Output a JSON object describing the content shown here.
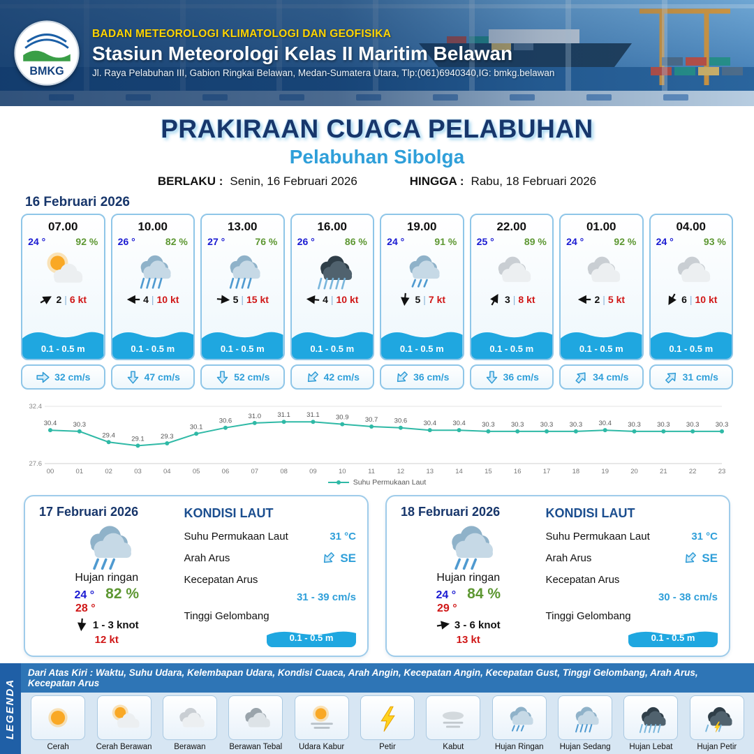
{
  "header": {
    "logo": "BMKG",
    "agency": "BADAN METEOROLOGI KLIMATOLOGI DAN GEOFISIKA",
    "station": "Stasiun Meteorologi Kelas II Maritim Belawan",
    "address": "Jl. Raya Pelabuhan III, Gabion Ringkai Belawan, Medan-Sumatera Utara, Tlp:(061)6940340,IG: bmkg.belawan"
  },
  "title": {
    "main": "PRAKIRAAN CUACA PELABUHAN",
    "subtitle": "Pelabuhan Sibolga",
    "valid_from_label": "BERLAKU :",
    "valid_from": "Senin, 16 Februari 2026",
    "valid_to_label": "HINGGA :",
    "valid_to": "Rabu, 18 Februari 2026"
  },
  "forecast": {
    "date": "16 Februari 2026",
    "cards": [
      {
        "time": "07.00",
        "temp": "24 °",
        "humidity": "92 %",
        "icon": "cerah-berawan",
        "wind_rot": -30,
        "wind_speed": "2",
        "gust": "6 kt",
        "wave": "0.1 - 0.5 m",
        "current_rot": 0,
        "current": "32 cm/s"
      },
      {
        "time": "10.00",
        "temp": "26 °",
        "humidity": "82 %",
        "icon": "hujan-sedang",
        "wind_rot": 180,
        "wind_speed": "4",
        "gust": "10 kt",
        "wave": "0.1 - 0.5 m",
        "current_rot": 90,
        "current": "47 cm/s"
      },
      {
        "time": "13.00",
        "temp": "27 °",
        "humidity": "76 %",
        "icon": "hujan-sedang",
        "wind_rot": 5,
        "wind_speed": "5",
        "gust": "15 kt",
        "wave": "0.1 - 0.5 m",
        "current_rot": 90,
        "current": "52 cm/s"
      },
      {
        "time": "16.00",
        "temp": "26 °",
        "humidity": "86 %",
        "icon": "hujan-lebat",
        "wind_rot": 185,
        "wind_speed": "4",
        "gust": "10 kt",
        "wave": "0.1 - 0.5 m",
        "current_rot": 135,
        "current": "42 cm/s"
      },
      {
        "time": "19.00",
        "temp": "24 °",
        "humidity": "91 %",
        "icon": "hujan-ringan",
        "wind_rot": 95,
        "wind_speed": "5",
        "gust": "7 kt",
        "wave": "0.1 - 0.5 m",
        "current_rot": 135,
        "current": "36 cm/s"
      },
      {
        "time": "22.00",
        "temp": "25 °",
        "humidity": "89 %",
        "icon": "berawan",
        "wind_rot": -60,
        "wind_speed": "3",
        "gust": "8 kt",
        "wave": "0.1 - 0.5 m",
        "current_rot": 90,
        "current": "36 cm/s"
      },
      {
        "time": "01.00",
        "temp": "24 °",
        "humidity": "92 %",
        "icon": "berawan",
        "wind_rot": 180,
        "wind_speed": "2",
        "gust": "5 kt",
        "wave": "0.1 - 0.5 m",
        "current_rot": -50,
        "current": "34 cm/s"
      },
      {
        "time": "04.00",
        "temp": "24 °",
        "humidity": "93 %",
        "icon": "berawan",
        "wind_rot": 120,
        "wind_speed": "6",
        "gust": "10 kt",
        "wave": "0.1 - 0.5 m",
        "current_rot": -45,
        "current": "31 cm/s"
      }
    ]
  },
  "chart_data": {
    "type": "line",
    "x": [
      "00",
      "01",
      "02",
      "03",
      "04",
      "05",
      "06",
      "07",
      "08",
      "09",
      "10",
      "11",
      "12",
      "13",
      "14",
      "15",
      "16",
      "17",
      "18",
      "19",
      "20",
      "21",
      "22",
      "23"
    ],
    "values": [
      30.4,
      30.3,
      29.4,
      29.1,
      29.3,
      30.1,
      30.6,
      31.0,
      31.1,
      31.1,
      30.9,
      30.7,
      30.6,
      30.4,
      30.4,
      30.3,
      30.3,
      30.3,
      30.3,
      30.4,
      30.3,
      30.3,
      30.3,
      30.3
    ],
    "ylim": [
      27.6,
      32.4
    ],
    "y_ticks": [
      "32.4",
      "27.6"
    ],
    "legend": "Suhu Permukaan Laut",
    "line_color": "#2fb9a6",
    "grid": false,
    "legend_position": "bottom"
  },
  "daily": [
    {
      "date": "17 Februari 2026",
      "icon": "hujan-ringan",
      "condition": "Hujan ringan",
      "temp_min": "24 °",
      "humidity": "82 %",
      "temp_max": "28 °",
      "wind_rot": 95,
      "wind": "1  - 3 knot",
      "gust": "12 kt",
      "sea_title": "KONDISI LAUT",
      "sst_label": "Suhu Permukaan Laut",
      "sst": "31 °C",
      "current_dir_label": "Arah Arus",
      "current_rot": 135,
      "current_dir": "SE",
      "current_speed_label": "Kecepatan Arus",
      "current_speed": "31  - 39 cm/s",
      "wave_label": "Tinggi Gelombang",
      "wave": "0.1 - 0.5 m"
    },
    {
      "date": "18 Februari 2026",
      "icon": "hujan-ringan",
      "condition": "Hujan ringan",
      "temp_min": "24 °",
      "humidity": "84 %",
      "temp_max": "29 °",
      "wind_rot": -10,
      "wind": "3  - 6 knot",
      "gust": "13 kt",
      "sea_title": "KONDISI LAUT",
      "sst_label": "Suhu Permukaan Laut",
      "sst": "31 °C",
      "current_dir_label": "Arah Arus",
      "current_rot": 135,
      "current_dir": "SE",
      "current_speed_label": "Kecepatan Arus",
      "current_speed": "30  - 38 cm/s",
      "wave_label": "Tinggi Gelombang",
      "wave": "0.1 - 0.5 m"
    }
  ],
  "legend_section": {
    "title": "LEGENDA",
    "description": "Dari Atas Kiri : Waktu, Suhu Udara, Kelembapan Udara, Kondisi Cuaca, Arah Angin, Kecepatan Angin, Kecepatan Gust, Tinggi Gelombang, Arah Arus, Kecepatan Arus",
    "items": [
      {
        "label": "Cerah",
        "icon": "cerah"
      },
      {
        "label": "Cerah Berawan",
        "icon": "cerah-berawan"
      },
      {
        "label": "Berawan",
        "icon": "berawan"
      },
      {
        "label": "Berawan Tebal",
        "icon": "berawan-tebal"
      },
      {
        "label": "Udara Kabur",
        "icon": "udara-kabur"
      },
      {
        "label": "Petir",
        "icon": "petir"
      },
      {
        "label": "Kabut",
        "icon": "kabut"
      },
      {
        "label": "Hujan Ringan",
        "icon": "hujan-ringan"
      },
      {
        "label": "Hujan Sedang",
        "icon": "hujan-sedang"
      },
      {
        "label": "Hujan Lebat",
        "icon": "hujan-lebat"
      },
      {
        "label": "Hujan Petir",
        "icon": "hujan-petir"
      }
    ]
  }
}
